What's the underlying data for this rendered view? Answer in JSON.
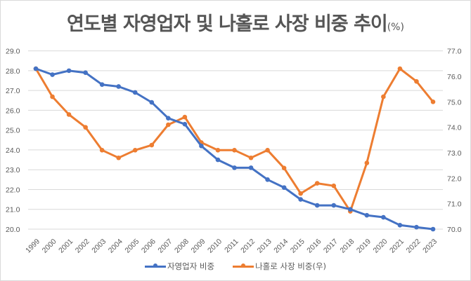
{
  "title": {
    "main": "연도별 자영업자 및 나홀로 사장 비중 추이",
    "unit": "(%)"
  },
  "legend": [
    {
      "label": "자영업자 비중",
      "color": "#4472C4"
    },
    {
      "label": "나홀로 사장 비중(우)",
      "color": "#ED7D31"
    }
  ],
  "chart_data": {
    "type": "line",
    "title": "연도별 자영업자 및 나홀로 사장 비중 추이(%)",
    "xlabel": "",
    "ylabel": "",
    "categories": [
      "1999",
      "2000",
      "2001",
      "2002",
      "2003",
      "2004",
      "2005",
      "2006",
      "2007",
      "2008",
      "2009",
      "2010",
      "2011",
      "2012",
      "2013",
      "2014",
      "2015",
      "2016",
      "2017",
      "2018",
      "2019",
      "2020",
      "2021",
      "2022",
      "2023"
    ],
    "series": [
      {
        "name": "자영업자 비중",
        "axis": "left",
        "color": "#4472C4",
        "values": [
          28.1,
          27.8,
          28.0,
          27.9,
          27.3,
          27.2,
          26.9,
          26.4,
          25.6,
          25.3,
          24.2,
          23.5,
          23.1,
          23.1,
          22.5,
          22.1,
          21.5,
          21.2,
          21.2,
          21.0,
          20.7,
          20.6,
          20.2,
          20.1,
          20.0
        ]
      },
      {
        "name": "나홀로 사장 비중(우)",
        "axis": "right",
        "color": "#ED7D31",
        "values": [
          76.3,
          75.2,
          74.5,
          74.0,
          73.1,
          72.8,
          73.1,
          73.3,
          74.1,
          74.4,
          73.4,
          73.1,
          73.1,
          72.8,
          73.1,
          72.4,
          71.4,
          71.8,
          71.7,
          70.7,
          72.6,
          75.2,
          76.3,
          75.8,
          75.0
        ]
      }
    ],
    "ylim": [
      20.0,
      29.0
    ],
    "yticks": [
      "29.0",
      "28.0",
      "27.0",
      "26.0",
      "25.0",
      "24.0",
      "23.0",
      "22.0",
      "21.0",
      "20.0"
    ],
    "y2lim": [
      70.0,
      77.0
    ],
    "y2ticks": [
      "77.0",
      "76.0",
      "75.0",
      "74.0",
      "73.0",
      "72.0",
      "71.0",
      "70.0"
    ],
    "grid": true,
    "legend_position": "bottom"
  }
}
